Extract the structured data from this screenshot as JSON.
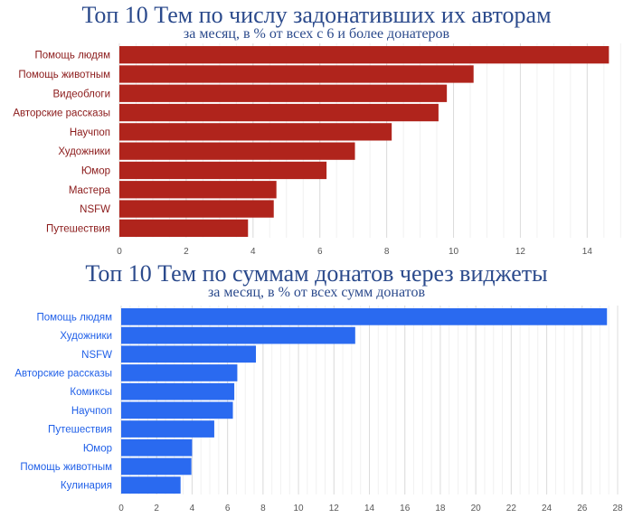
{
  "chart_data": [
    {
      "type": "bar",
      "orientation": "horizontal",
      "title": "Топ 10 Тем по числу задонативших их авторам",
      "subtitle": "за месяц, в % от всех с 6 и более донатеров",
      "categories": [
        "Помощь людям",
        "Помощь животным",
        "Видеоблоги",
        "Авторские рассказы",
        "Научпоп",
        "Художники",
        "Юмор",
        "Мастера",
        "NSFW",
        "Путешествия"
      ],
      "values": [
        14.65,
        10.6,
        9.8,
        9.55,
        8.15,
        7.05,
        6.2,
        4.7,
        4.62,
        3.85
      ],
      "xticks": [
        0,
        2,
        4,
        6,
        8,
        10,
        12,
        14
      ],
      "xlim": [
        0,
        15.1
      ],
      "color": "#b0241c",
      "label_color": "#8b1a1a",
      "grid": true
    },
    {
      "type": "bar",
      "orientation": "horizontal",
      "title": "Топ 10 Тем по суммам донатов через виджеты",
      "subtitle": "за месяц, в % от всех сумм донатов",
      "categories": [
        "Помощь людям",
        "Художники",
        "NSFW",
        "Авторские рассказы",
        "Комиксы",
        "Научпоп",
        "Путешествия",
        "Юмор",
        "Помощь животным",
        "Кулинария"
      ],
      "values": [
        27.4,
        13.2,
        7.6,
        6.55,
        6.38,
        6.3,
        5.25,
        4.0,
        3.96,
        3.35
      ],
      "xticks": [
        0,
        2,
        4,
        6,
        8,
        10,
        12,
        14,
        16,
        18,
        20,
        22,
        24,
        26,
        28
      ],
      "xlim": [
        0,
        28
      ],
      "color": "#2a6af0",
      "label_color": "#1f5fe8",
      "grid": true
    }
  ]
}
